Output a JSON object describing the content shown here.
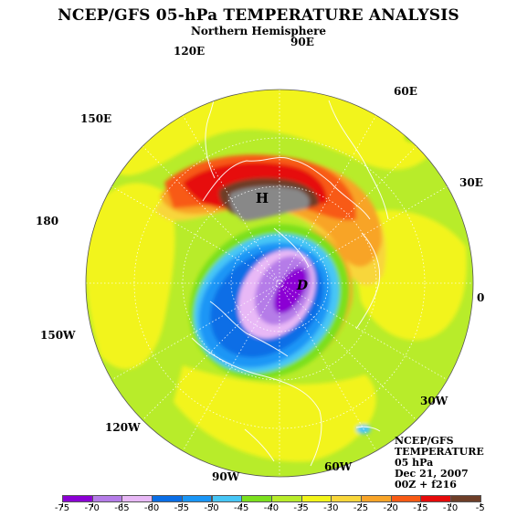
{
  "title": "NCEP/GFS 05-hPa TEMPERATURE ANALYSIS",
  "subtitle": "Northern Hemisphere",
  "longitude_labels": {
    "lon_90e": "90E",
    "lon_120e": "120E",
    "lon_60e": "60E",
    "lon_150e": "150E",
    "lon_30e": "30E",
    "lon_180": "180",
    "lon_0": "0",
    "lon_150w": "150W",
    "lon_30w": "30W",
    "lon_120w": "120W",
    "lon_60w": "60W",
    "lon_90w": "90W"
  },
  "markers": {
    "high": "H",
    "low": "D"
  },
  "info": {
    "line1": "NCEP/GFS",
    "line2": "TEMPERATURE",
    "line3": "05 hPa",
    "line4": "Dec 21, 2007",
    "line5": "00Z + f216"
  },
  "colorbar": {
    "ticks": [
      "-75",
      "-70",
      "-65",
      "-60",
      "-55",
      "-50",
      "-45",
      "-40",
      "-35",
      "-30",
      "-25",
      "-20",
      "-15",
      "-10",
      "-5"
    ],
    "colors": [
      "#8b00d4",
      "#b57ce8",
      "#e8b8f6",
      "#0a6ee6",
      "#1a96f6",
      "#46c6f6",
      "#7be01e",
      "#b8ec2a",
      "#f2f41a",
      "#f8d63a",
      "#f8a428",
      "#f85a14",
      "#e60a0a",
      "#6e3e28",
      "#888888"
    ]
  }
}
